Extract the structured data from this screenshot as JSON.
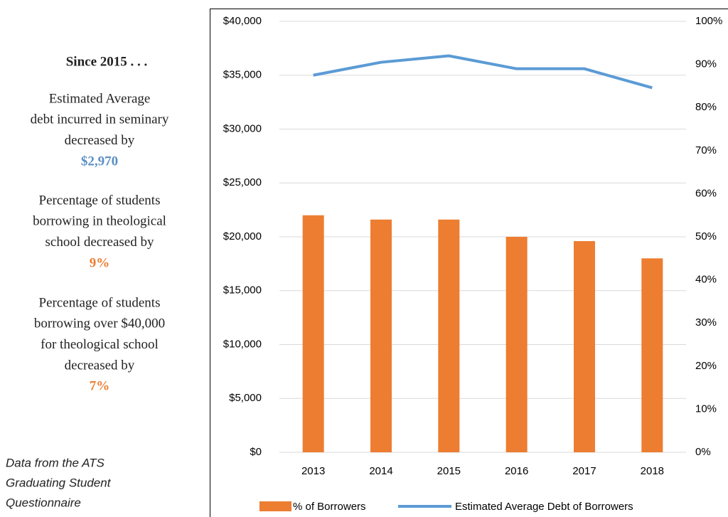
{
  "sidebar": {
    "heading": "Since 2015 . . .",
    "items": [
      {
        "lines": [
          "Estimated Average",
          "debt incurred in seminary",
          "decreased by"
        ],
        "value": "$2,970",
        "color": "#5b8fc4"
      },
      {
        "lines": [
          "Percentage of students",
          "borrowing in theological",
          "school decreased by"
        ],
        "value": "9%",
        "color": "#ed7d31"
      },
      {
        "lines": [
          "Percentage of students",
          "borrowing over $40,000",
          "for theological school",
          "decreased by"
        ],
        "value": "7%",
        "color": "#ed7d31"
      }
    ],
    "note": [
      "Data from the ATS",
      "Graduating Student",
      "Questionnaire"
    ]
  },
  "chart_data": {
    "type": "combo",
    "categories": [
      "2013",
      "2014",
      "2015",
      "2016",
      "2017",
      "2018"
    ],
    "series": [
      {
        "name": "% of Borrowers",
        "type": "bar",
        "axis": "y2",
        "color": "#ed7d31",
        "values": [
          55,
          54,
          54,
          50,
          49,
          45
        ]
      },
      {
        "name": "Estimated Average Debt of Borrowers",
        "type": "line",
        "color": "#5b9bd5",
        "values": [
          35000,
          36200,
          36800,
          35600,
          35600,
          33830
        ]
      }
    ],
    "ylim": [
      0,
      40000
    ],
    "yticks": [
      {
        "value": 0,
        "label": "$0"
      },
      {
        "value": 5000,
        "label": "$5,000"
      },
      {
        "value": 10000,
        "label": "$10,000"
      },
      {
        "value": 15000,
        "label": "$15,000"
      },
      {
        "value": 20000,
        "label": "$20,000"
      },
      {
        "value": 25000,
        "label": "$25,000"
      },
      {
        "value": 30000,
        "label": "$30,000"
      },
      {
        "value": 35000,
        "label": "$35,000"
      },
      {
        "value": 40000,
        "label": "$40,000"
      }
    ],
    "y2lim": [
      0,
      100
    ],
    "y2ticks": [
      {
        "value": 0,
        "label": "0%"
      },
      {
        "value": 10,
        "label": "10%"
      },
      {
        "value": 20,
        "label": "20%"
      },
      {
        "value": 30,
        "label": "30%"
      },
      {
        "value": 40,
        "label": "40%"
      },
      {
        "value": 50,
        "label": "50%"
      },
      {
        "value": 60,
        "label": "60%"
      },
      {
        "value": 70,
        "label": "70%"
      },
      {
        "value": 80,
        "label": "80%"
      },
      {
        "value": 90,
        "label": "90%"
      },
      {
        "value": 100,
        "label": "100%"
      }
    ],
    "grid": true,
    "legend": "bottom"
  }
}
